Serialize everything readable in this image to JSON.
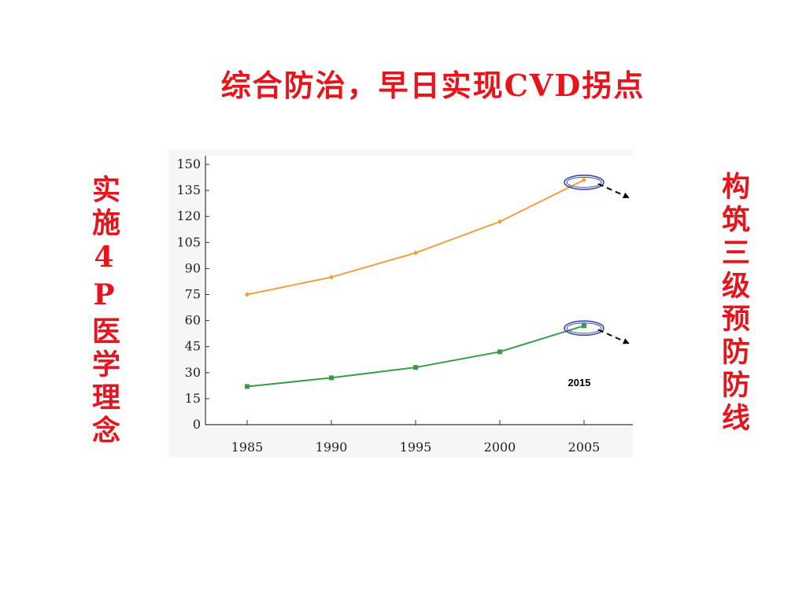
{
  "slide": {
    "title": "综合防治，早日实现CVD拐点",
    "left_vertical_text": "实施4P医学理念",
    "right_vertical_text": "构筑三级预防防线"
  },
  "chart_data": {
    "type": "line",
    "x": [
      1985,
      1990,
      1995,
      2000,
      2005
    ],
    "xticks": [
      "1985",
      "1990",
      "1995",
      "2000",
      "2005"
    ],
    "yticks": [
      "0",
      "15",
      "30",
      "45",
      "60",
      "75",
      "90",
      "105",
      "120",
      "135",
      "150"
    ],
    "ylim": [
      0,
      150
    ],
    "xlim": [
      1985,
      2005
    ],
    "series": [
      {
        "values": [
          75,
          85,
          99,
          117,
          141
        ],
        "color": "#f0a040",
        "marker": "diamond"
      },
      {
        "values": [
          22,
          27,
          33,
          42,
          57
        ],
        "color": "#3a9a48",
        "marker": "square"
      }
    ],
    "annotations": [
      {
        "text": "2015"
      }
    ],
    "colors": {
      "highlight_ellipse": "#3a48a8",
      "arrow": "#000000"
    }
  }
}
